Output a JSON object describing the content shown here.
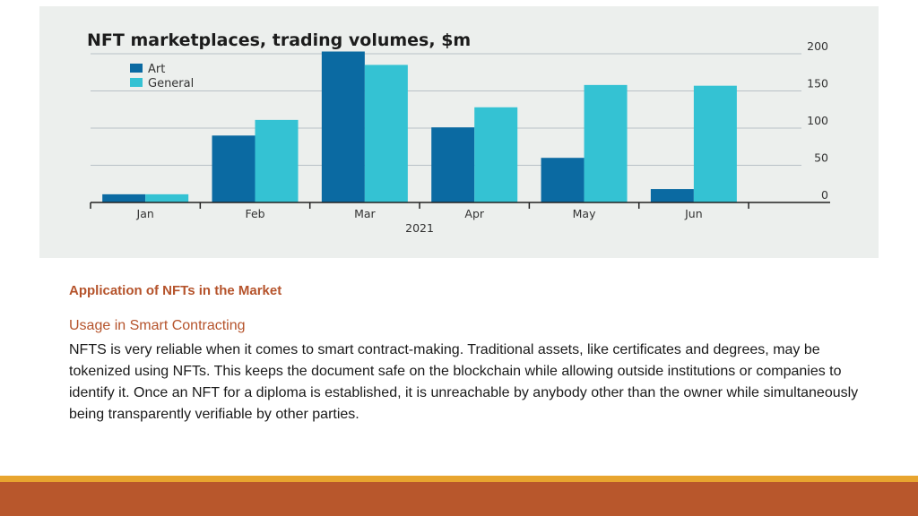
{
  "slide": {
    "heading": "Application of NFTs in the Market",
    "subheading": "Usage in Smart Contracting",
    "paragraph": "NFTS is very reliable when it comes to smart contract-making. Traditional assets, like certificates and degrees, may be tokenized using NFTs. This keeps the document safe on the blockchain while allowing outside institutions or companies to identify it. Once an NFT for a diploma is established, it is unreachable by anybody other than the owner while simultaneously being transparently verifiable by other parties.",
    "colors": {
      "accent": "#b8572c",
      "stripe": "#e8a52f",
      "heading": "#b5532b"
    }
  },
  "chart_data": {
    "type": "bar",
    "title": "NFT marketplaces, trading volumes, $m",
    "categories": [
      "Jan",
      "Feb",
      "Mar",
      "Apr",
      "May",
      "Jun"
    ],
    "xlabel": "2021",
    "ylabel": "",
    "ylim": [
      0,
      200
    ],
    "yticks": [
      0,
      50,
      100,
      150,
      200
    ],
    "ytick_labels": [
      "0",
      "50",
      "100",
      "150",
      "200"
    ],
    "y_axis_side": "right",
    "grid": true,
    "legend_position": "top-left",
    "series": [
      {
        "name": "Art",
        "color": "#0b6aa2",
        "values": [
          11,
          90,
          203,
          101,
          60,
          18
        ]
      },
      {
        "name": "General",
        "color": "#34c2d3",
        "values": [
          11,
          111,
          185,
          128,
          158,
          157
        ]
      }
    ]
  }
}
